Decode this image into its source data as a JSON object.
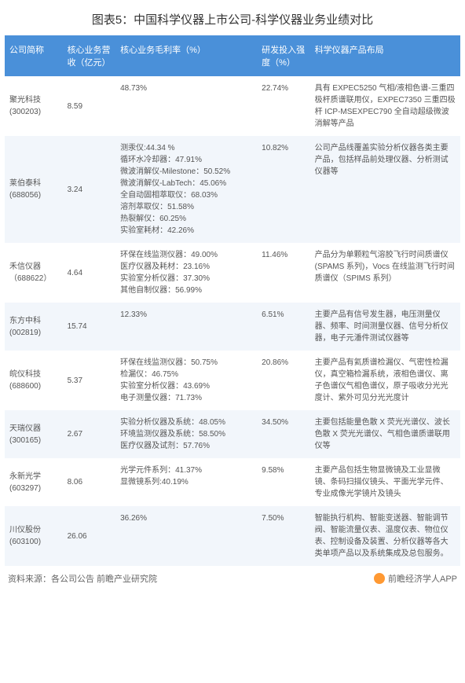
{
  "title": "图表5：中国科学仪器上市公司-科学仪器业务业绩对比",
  "columns": {
    "c1": "公司简称",
    "c2": "核心业务营收（亿元）",
    "c3": "核心业务毛利率（%）",
    "c4": "研发投入强度（%）",
    "c5": "科学仪器产品布局"
  },
  "rows": [
    {
      "company": "聚光科技\n(300203)",
      "revenue": "8.59",
      "margin": "48.73%",
      "rd": "22.74%",
      "products": "具有 EXPEC5250 气相/液相色谱-三重四极杆质谱联用仪，EXPEC7350 三重四极杆 ICP-MSEXPEC790 全自动超级微波消解等产品"
    },
    {
      "company": "莱伯泰科\n(688056)",
      "revenue": "3.24",
      "margin": "测汞仪:44.34 %\n循环水冷却器：47.91%\n微波消解仪-Milestone：50.52%\n微波消解仪-LabTech：45.06%\n全自动固相萃取仪：68.03%\n溶剂萃取仪：51.58%\n热裂解仪：60.25%\n实验室耗材：42.26%",
      "rd": "10.82%",
      "products": "公司产品线覆盖实验分析仪器各类主要产品，包括样品前处理仪器、分析测试仪器等"
    },
    {
      "company": "禾信仪器\n（688622）",
      "revenue": "4.64",
      "margin": "环保在线监测仪器：49.00%\n医疗仪器及耗材：23.16%\n实验室分析仪器：37.30%\n其他自制仪器：56.99%",
      "rd": "11.46%",
      "products": "产品分为单颗粒气溶胶飞行时间质谱仪(SPAMS 系列)，Vocs 在线监测飞行时间质谱仪（SPIMS 系列）"
    },
    {
      "company": "东方中科\n(002819)",
      "revenue": "15.74",
      "margin": "12.33%",
      "rd": "6.51%",
      "products": "主要产品有信号发生器，电压测量仪器、频率、时间测量仪器、信号分析仪器，电子元潘件测试仪器等"
    },
    {
      "company": "皖仪科技\n(688600)",
      "revenue": "5.37",
      "margin": "环保在线监测仪器：50.75%\n检漏仪：46.75%\n实验室分析仪器：43.69%\n电子测量仪器：71.73%",
      "rd": "20.86%",
      "products": "主要产品有氦质谱检漏仪、气密性检漏仪，真空箱检漏系统，液相色谱仪、离子色谱仪气相色谱仪，原子吸收分光光度计、紫外可见分光光度计"
    },
    {
      "company": "天瑞仪器\n(300165)",
      "revenue": "2.67",
      "margin": "实验分析仪器及系统：48.05%\n环境监测仪器及系统：58.50%\n医疗仪器及试剂：57.76%",
      "rd": "34.50%",
      "products": "主要包括能量色散 X 荧光光谱仪、波长色散 X 荧光光谱仪、气相色谱质谱联用仪等"
    },
    {
      "company": "永新光学\n(603297)",
      "revenue": "8.06",
      "margin": "光学元件系列：41.37%\n显微镜系列:40.19%",
      "rd": "9.58%",
      "products": "主要产品包括生物显微镜及工业显微镜、条码扫描仪镜头、平面光学元件、专业成像光学镜片及镜头"
    },
    {
      "company": "川仪股份\n(603100)",
      "revenue": "26.06",
      "margin": "36.26%",
      "rd": "7.50%",
      "products": "智能执行机构、智能变送器、智能调节阀、智能流量仪表、温度仪表、物位仪表、控制设备及装置、分析仪器等各大类单项产品以及系统集成及总包服务。"
    }
  ],
  "footer": {
    "source": "资料来源：各公司公告 前瞻产业研究院",
    "brand": "前瞻经济学人APP"
  },
  "colors": {
    "header_bg": "#4a90d9",
    "header_text": "#ffffff",
    "row_alt_bg": "#f2f6fb",
    "text": "#555555",
    "logo": "#ff9933"
  }
}
